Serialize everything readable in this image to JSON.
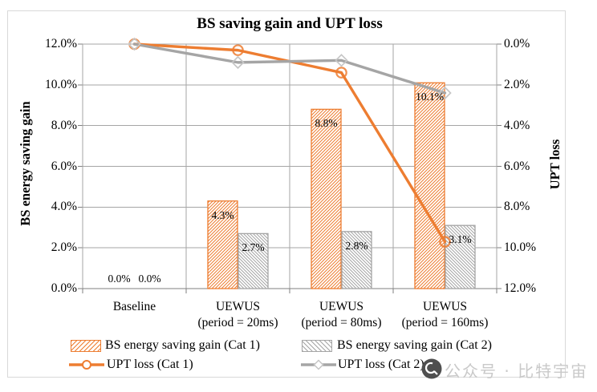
{
  "chart_data": {
    "type": "bar+line",
    "title": "BS saving gain and UPT loss",
    "categories": [
      [
        "Baseline"
      ],
      [
        "UEWUS",
        "(period = 20ms)"
      ],
      [
        "UEWUS",
        "(period = 80ms)"
      ],
      [
        "UEWUS",
        "(period = 160ms)"
      ]
    ],
    "left_axis": {
      "label": "BS energy saving gain",
      "ticks": [
        "12.0%",
        "10.0%",
        "8.0%",
        "6.0%",
        "4.0%",
        "2.0%",
        "0.0%"
      ],
      "min": 0,
      "max": 12
    },
    "right_axis": {
      "label": "UPT loss",
      "ticks": [
        "0.0%",
        "2.0%",
        "4.0%",
        "6.0%",
        "8.0%",
        "10.0%",
        "12.0%"
      ],
      "min": 0,
      "max": 12,
      "inverted": true
    },
    "bar_series": [
      {
        "name": "BS energy saving gain (Cat 1)",
        "color": "#ED7D31",
        "hatch": "/",
        "values": [
          0.0,
          4.3,
          8.8,
          10.1
        ],
        "labels": [
          "0.0%",
          "4.3%",
          "8.8%",
          "10.1%"
        ]
      },
      {
        "name": "BS energy saving gain (Cat 2)",
        "color": "#A5A5A5",
        "hatch": "\\",
        "values": [
          0.0,
          2.7,
          2.8,
          3.1
        ],
        "labels": [
          "0.0%",
          "2.7%",
          "2.8%",
          "3.1%"
        ]
      }
    ],
    "line_series": [
      {
        "name": "UPT loss (Cat 1)",
        "color": "#ED7D31",
        "marker": "circle",
        "values": [
          0.0,
          0.3,
          1.4,
          9.7
        ]
      },
      {
        "name": "UPT loss (Cat 2)",
        "color": "#A5A5A5",
        "marker": "diamond",
        "values": [
          0.0,
          0.9,
          0.8,
          2.4
        ]
      }
    ],
    "grid": true,
    "legend_position": "bottom",
    "colors": {
      "gridline": "#A6A6A6",
      "axis": "#7F7F7F",
      "frame": "#D9D9D9"
    }
  },
  "watermark": {
    "text": "公众号 · 比特宇宙"
  }
}
